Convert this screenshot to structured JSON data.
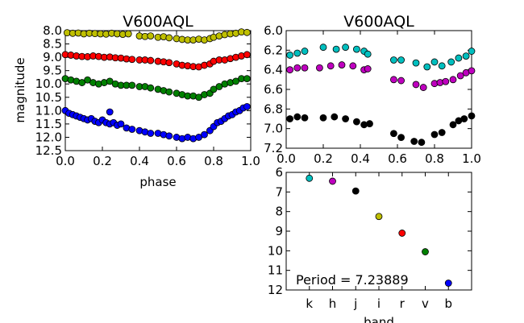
{
  "chart_data": [
    {
      "type": "scatter",
      "title": "V600AQL",
      "xlabel": "phase",
      "ylabel": "magnitude",
      "xlim": [
        0.0,
        1.0
      ],
      "ylim": [
        12.5,
        8.0
      ],
      "y_inverted": true,
      "xticks": [
        "0.0",
        "0.2",
        "0.4",
        "0.6",
        "0.8",
        "1.0"
      ],
      "yticks": [
        "8.0",
        "8.5",
        "9.0",
        "9.5",
        "10.0",
        "10.5",
        "11.0",
        "11.5",
        "12.0",
        "12.5"
      ],
      "series": [
        {
          "color": "#bfbf00",
          "x": [
            0.01,
            0.04,
            0.07,
            0.1,
            0.13,
            0.16,
            0.19,
            0.22,
            0.25,
            0.28,
            0.31,
            0.34,
            0.4,
            0.43,
            0.46,
            0.5,
            0.53,
            0.56,
            0.6,
            0.63,
            0.66,
            0.69,
            0.72,
            0.75,
            0.78,
            0.8,
            0.83,
            0.86,
            0.89,
            0.92,
            0.95,
            0.98
          ],
          "y": [
            8.08,
            8.1,
            8.09,
            8.12,
            8.1,
            8.11,
            8.12,
            8.13,
            8.1,
            8.12,
            8.14,
            8.12,
            8.2,
            8.22,
            8.2,
            8.25,
            8.23,
            8.27,
            8.3,
            8.33,
            8.35,
            8.35,
            8.32,
            8.35,
            8.3,
            8.25,
            8.2,
            8.15,
            8.12,
            8.1,
            8.05,
            8.07
          ]
        },
        {
          "color": "#ff0000",
          "x": [
            0.0,
            0.03,
            0.06,
            0.09,
            0.12,
            0.15,
            0.18,
            0.21,
            0.24,
            0.27,
            0.3,
            0.33,
            0.36,
            0.4,
            0.43,
            0.46,
            0.5,
            0.53,
            0.56,
            0.6,
            0.63,
            0.66,
            0.69,
            0.72,
            0.75,
            0.78,
            0.8,
            0.83,
            0.86,
            0.89,
            0.92,
            0.95,
            0.98
          ],
          "y": [
            8.9,
            8.92,
            8.95,
            8.97,
            8.98,
            8.95,
            8.97,
            9.0,
            8.99,
            9.02,
            9.03,
            9.06,
            9.08,
            9.1,
            9.1,
            9.12,
            9.15,
            9.17,
            9.2,
            9.25,
            9.3,
            9.32,
            9.35,
            9.36,
            9.3,
            9.25,
            9.15,
            9.1,
            9.1,
            9.05,
            9.0,
            8.95,
            8.9
          ]
        },
        {
          "color": "#008000",
          "x": [
            0.0,
            0.03,
            0.06,
            0.09,
            0.12,
            0.15,
            0.18,
            0.21,
            0.24,
            0.27,
            0.3,
            0.33,
            0.36,
            0.4,
            0.43,
            0.46,
            0.5,
            0.53,
            0.56,
            0.6,
            0.63,
            0.66,
            0.69,
            0.72,
            0.75,
            0.78,
            0.8,
            0.83,
            0.86,
            0.89,
            0.92,
            0.95,
            0.98
          ],
          "y": [
            9.8,
            9.85,
            9.9,
            9.95,
            9.85,
            9.95,
            10.0,
            9.95,
            9.9,
            10.0,
            10.05,
            10.05,
            10.05,
            10.1,
            10.1,
            10.15,
            10.2,
            10.25,
            10.3,
            10.35,
            10.4,
            10.45,
            10.45,
            10.5,
            10.4,
            10.35,
            10.2,
            10.1,
            10.0,
            9.95,
            9.9,
            9.8,
            9.8
          ]
        },
        {
          "color": "#0000ff",
          "x": [
            0.0,
            0.02,
            0.04,
            0.06,
            0.08,
            0.1,
            0.12,
            0.14,
            0.16,
            0.18,
            0.2,
            0.22,
            0.24,
            0.26,
            0.28,
            0.3,
            0.33,
            0.36,
            0.4,
            0.43,
            0.46,
            0.5,
            0.53,
            0.56,
            0.6,
            0.63,
            0.66,
            0.69,
            0.72,
            0.75,
            0.78,
            0.8,
            0.82,
            0.84,
            0.86,
            0.88,
            0.9,
            0.92,
            0.94,
            0.96,
            0.98
          ],
          "y": [
            11.0,
            11.1,
            11.15,
            11.2,
            11.25,
            11.3,
            11.35,
            11.3,
            11.4,
            11.45,
            11.35,
            11.45,
            11.5,
            11.45,
            11.55,
            11.5,
            11.65,
            11.7,
            11.75,
            11.8,
            11.85,
            11.85,
            11.9,
            11.95,
            12.0,
            12.05,
            12.0,
            12.05,
            12.0,
            11.9,
            11.75,
            11.6,
            11.45,
            11.4,
            11.3,
            11.2,
            11.15,
            11.05,
            11.0,
            10.9,
            10.85
          ]
        }
      ],
      "outliers": [
        {
          "color": "#0000ff",
          "x": 0.24,
          "y": 11.05
        }
      ]
    },
    {
      "type": "scatter",
      "title": "V600AQL",
      "xlabel": "",
      "ylabel": "",
      "xlim": [
        0.0,
        1.0
      ],
      "ylim": [
        7.2,
        6.0
      ],
      "y_inverted": true,
      "xticks": [
        "0.0",
        "0.2",
        "0.4",
        "0.6",
        "0.8",
        "1.0"
      ],
      "yticks": [
        "6.0",
        "6.2",
        "6.4",
        "6.6",
        "6.8",
        "7.0",
        "7.2"
      ],
      "series": [
        {
          "color": "#00bfbf",
          "x": [
            0.02,
            0.06,
            0.1,
            0.2,
            0.27,
            0.32,
            0.38,
            0.42,
            0.44,
            0.58,
            0.62,
            0.7,
            0.76,
            0.8,
            0.84,
            0.89,
            0.93,
            0.97,
            1.0
          ],
          "y": [
            6.25,
            6.23,
            6.21,
            6.17,
            6.19,
            6.17,
            6.19,
            6.21,
            6.24,
            6.3,
            6.3,
            6.33,
            6.37,
            6.32,
            6.36,
            6.32,
            6.28,
            6.26,
            6.21
          ]
        },
        {
          "color": "#bf00bf",
          "x": [
            0.02,
            0.06,
            0.1,
            0.18,
            0.24,
            0.3,
            0.36,
            0.42,
            0.44,
            0.58,
            0.62,
            0.7,
            0.74,
            0.8,
            0.83,
            0.86,
            0.9,
            0.94,
            0.97,
            1.0
          ],
          "y": [
            6.4,
            6.38,
            6.38,
            6.38,
            6.36,
            6.35,
            6.36,
            6.4,
            6.39,
            6.5,
            6.51,
            6.55,
            6.58,
            6.54,
            6.53,
            6.52,
            6.5,
            6.46,
            6.43,
            6.41
          ]
        },
        {
          "color": "#000000",
          "x": [
            0.02,
            0.06,
            0.1,
            0.2,
            0.26,
            0.32,
            0.38,
            0.42,
            0.45,
            0.58,
            0.62,
            0.69,
            0.73,
            0.8,
            0.84,
            0.9,
            0.93,
            0.96,
            1.0
          ],
          "y": [
            6.9,
            6.88,
            6.89,
            6.89,
            6.88,
            6.9,
            6.93,
            6.96,
            6.95,
            7.05,
            7.09,
            7.13,
            7.14,
            7.06,
            7.04,
            6.96,
            6.92,
            6.9,
            6.87
          ]
        }
      ]
    },
    {
      "type": "scatter",
      "title": "",
      "xlabel": "band",
      "ylabel": "",
      "ylim": [
        12,
        6
      ],
      "y_inverted": true,
      "categories": [
        "k",
        "h",
        "j",
        "i",
        "r",
        "v",
        "b"
      ],
      "yticks": [
        "6",
        "7",
        "8",
        "9",
        "10",
        "11",
        "12"
      ],
      "points": [
        {
          "band": "k",
          "value": 6.3,
          "color": "#00bfbf"
        },
        {
          "band": "h",
          "value": 6.45,
          "color": "#bf00bf"
        },
        {
          "band": "j",
          "value": 6.95,
          "color": "#000000"
        },
        {
          "band": "i",
          "value": 8.25,
          "color": "#bfbf00"
        },
        {
          "band": "r",
          "value": 9.1,
          "color": "#ff0000"
        },
        {
          "band": "v",
          "value": 10.05,
          "color": "#008000"
        },
        {
          "band": "b",
          "value": 11.65,
          "color": "#0000ff"
        }
      ],
      "annotation": "Period = 7.23889"
    }
  ]
}
